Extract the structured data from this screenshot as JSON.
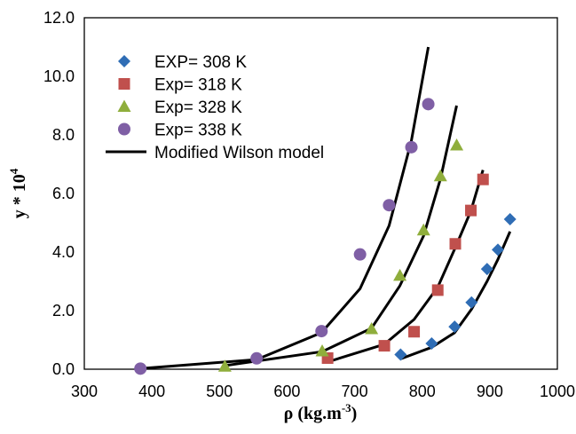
{
  "chart_data": {
    "type": "scatter",
    "xlabel_base": "ρ (kg.m",
    "xlabel_sup": "-3",
    "xlabel_end": ")",
    "ylabel_base": "y * 10",
    "ylabel_sup": "4",
    "xlim": [
      300,
      1000
    ],
    "ylim": [
      0,
      12
    ],
    "x_ticks": [
      "300",
      "400",
      "500",
      "600",
      "700",
      "800",
      "900",
      "1000"
    ],
    "y_ticks": [
      "0.0",
      "2.0",
      "4.0",
      "6.0",
      "8.0",
      "10.0",
      "12.0"
    ],
    "grid": false,
    "legend_position": "top-left",
    "series": [
      {
        "name": "EXP= 308 K",
        "marker": "diamond",
        "color": "#2f6db5",
        "x": [
          768,
          814,
          848,
          873,
          896,
          912,
          930
        ],
        "y": [
          0.5,
          0.88,
          1.45,
          2.28,
          3.42,
          4.08,
          5.12
        ]
      },
      {
        "name": "Exp= 318 K",
        "marker": "square",
        "color": "#c0504d",
        "x": [
          660,
          744,
          788,
          823,
          849,
          872,
          890
        ],
        "y": [
          0.38,
          0.8,
          1.28,
          2.7,
          4.28,
          5.42,
          6.48
        ]
      },
      {
        "name": "Exp= 328 K",
        "marker": "triangle",
        "color": "#8fae3c",
        "x": [
          508,
          652,
          725,
          767,
          802,
          827,
          851
        ],
        "y": [
          0.1,
          0.62,
          1.38,
          3.2,
          4.75,
          6.6,
          7.65
        ]
      },
      {
        "name": "Exp= 338 K",
        "marker": "circle",
        "color": "#7f5fa5",
        "x": [
          383,
          555,
          651,
          708,
          751,
          784,
          809
        ],
        "y": [
          0.02,
          0.37,
          1.3,
          3.92,
          5.6,
          7.58,
          9.05
        ]
      }
    ],
    "model": {
      "name": "Modified Wilson model",
      "color": "#000000",
      "lines": [
        {
          "x": [
            768,
            814,
            848,
            873,
            896,
            912,
            930
          ],
          "y": [
            0.35,
            0.75,
            1.25,
            2.05,
            3.0,
            3.75,
            4.7
          ]
        },
        {
          "x": [
            660,
            744,
            788,
            823,
            849,
            872,
            890
          ],
          "y": [
            0.25,
            0.85,
            1.7,
            2.8,
            4.15,
            5.4,
            6.8
          ]
        },
        {
          "x": [
            508,
            652,
            725,
            767,
            802,
            827,
            851
          ],
          "y": [
            0.12,
            0.6,
            1.4,
            2.85,
            4.55,
            6.5,
            9.0
          ]
        },
        {
          "x": [
            383,
            555,
            651,
            708,
            751,
            784,
            809
          ],
          "y": [
            0.02,
            0.33,
            1.25,
            2.75,
            4.9,
            7.8,
            11.0
          ]
        }
      ]
    }
  }
}
